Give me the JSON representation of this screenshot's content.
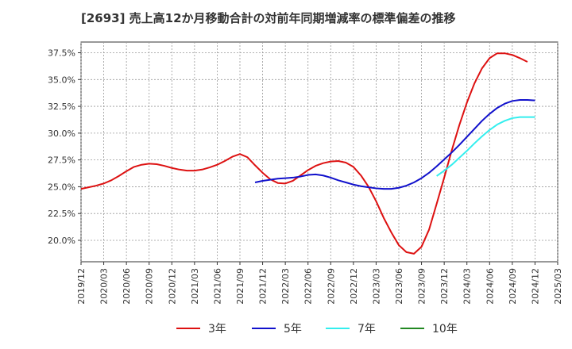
{
  "chart_data": {
    "type": "line",
    "title": "[2693]  売上高12か月移動合計の対前年同期増減率の標準偏差の推移",
    "xlabel": "",
    "ylabel": "",
    "x_ticks": [
      "2019/12",
      "2020/03",
      "2020/06",
      "2020/09",
      "2020/12",
      "2021/03",
      "2021/06",
      "2021/09",
      "2021/12",
      "2022/03",
      "2022/06",
      "2022/09",
      "2022/12",
      "2023/03",
      "2023/06",
      "2023/09",
      "2023/12",
      "2024/03",
      "2024/06",
      "2024/09",
      "2024/12",
      "2025/03"
    ],
    "y_ticks": [
      "20.0%",
      "22.5%",
      "25.0%",
      "27.5%",
      "30.0%",
      "32.5%",
      "35.0%",
      "37.5%"
    ],
    "ylim": [
      18.0,
      38.5
    ],
    "grid": true,
    "legend_position": "bottom",
    "series": [
      {
        "name": "3年",
        "color": "#dd1111",
        "data": [
          [
            "2019/12",
            24.8
          ],
          [
            "2020/01",
            24.95
          ],
          [
            "2020/02",
            25.1
          ],
          [
            "2020/03",
            25.3
          ],
          [
            "2020/04",
            25.6
          ],
          [
            "2020/05",
            26.0
          ],
          [
            "2020/06",
            26.45
          ],
          [
            "2020/07",
            26.85
          ],
          [
            "2020/08",
            27.05
          ],
          [
            "2020/09",
            27.15
          ],
          [
            "2020/10",
            27.1
          ],
          [
            "2020/11",
            26.95
          ],
          [
            "2020/12",
            26.75
          ],
          [
            "2021/01",
            26.6
          ],
          [
            "2021/02",
            26.5
          ],
          [
            "2021/03",
            26.5
          ],
          [
            "2021/04",
            26.6
          ],
          [
            "2021/05",
            26.8
          ],
          [
            "2021/06",
            27.05
          ],
          [
            "2021/07",
            27.4
          ],
          [
            "2021/08",
            27.8
          ],
          [
            "2021/09",
            28.05
          ],
          [
            "2021/10",
            27.75
          ],
          [
            "2021/11",
            27.0
          ],
          [
            "2021/12",
            26.3
          ],
          [
            "2022/01",
            25.7
          ],
          [
            "2022/02",
            25.35
          ],
          [
            "2022/03",
            25.3
          ],
          [
            "2022/04",
            25.55
          ],
          [
            "2022/05",
            26.05
          ],
          [
            "2022/06",
            26.55
          ],
          [
            "2022/07",
            26.95
          ],
          [
            "2022/08",
            27.2
          ],
          [
            "2022/09",
            27.35
          ],
          [
            "2022/10",
            27.4
          ],
          [
            "2022/11",
            27.25
          ],
          [
            "2022/12",
            26.85
          ],
          [
            "2023/01",
            26.05
          ],
          [
            "2023/02",
            25.0
          ],
          [
            "2023/03",
            23.65
          ],
          [
            "2023/04",
            22.1
          ],
          [
            "2023/05",
            20.75
          ],
          [
            "2023/06",
            19.55
          ],
          [
            "2023/07",
            18.9
          ],
          [
            "2023/08",
            18.75
          ],
          [
            "2023/09",
            19.4
          ],
          [
            "2023/10",
            21.0
          ],
          [
            "2023/11",
            23.4
          ],
          [
            "2023/12",
            25.85
          ],
          [
            "2024/01",
            28.4
          ],
          [
            "2024/02",
            30.75
          ],
          [
            "2024/03",
            32.85
          ],
          [
            "2024/04",
            34.65
          ],
          [
            "2024/05",
            36.05
          ],
          [
            "2024/06",
            37.0
          ],
          [
            "2024/07",
            37.45
          ],
          [
            "2024/08",
            37.45
          ],
          [
            "2024/09",
            37.3
          ],
          [
            "2024/10",
            37.0
          ],
          [
            "2024/11",
            36.65
          ]
        ]
      },
      {
        "name": "5年",
        "color": "#1111cc",
        "data": [
          [
            "2021/11",
            25.4
          ],
          [
            "2021/12",
            25.55
          ],
          [
            "2022/01",
            25.65
          ],
          [
            "2022/02",
            25.75
          ],
          [
            "2022/03",
            25.8
          ],
          [
            "2022/04",
            25.85
          ],
          [
            "2022/05",
            25.95
          ],
          [
            "2022/06",
            26.1
          ],
          [
            "2022/07",
            26.15
          ],
          [
            "2022/08",
            26.05
          ],
          [
            "2022/09",
            25.85
          ],
          [
            "2022/10",
            25.6
          ],
          [
            "2022/11",
            25.4
          ],
          [
            "2022/12",
            25.2
          ],
          [
            "2023/01",
            25.05
          ],
          [
            "2023/02",
            24.95
          ],
          [
            "2023/03",
            24.85
          ],
          [
            "2023/04",
            24.8
          ],
          [
            "2023/05",
            24.8
          ],
          [
            "2023/06",
            24.9
          ],
          [
            "2023/07",
            25.1
          ],
          [
            "2023/08",
            25.4
          ],
          [
            "2023/09",
            25.8
          ],
          [
            "2023/10",
            26.3
          ],
          [
            "2023/11",
            26.9
          ],
          [
            "2023/12",
            27.55
          ],
          [
            "2024/01",
            28.2
          ],
          [
            "2024/02",
            28.9
          ],
          [
            "2024/03",
            29.65
          ],
          [
            "2024/04",
            30.4
          ],
          [
            "2024/05",
            31.15
          ],
          [
            "2024/06",
            31.8
          ],
          [
            "2024/07",
            32.35
          ],
          [
            "2024/08",
            32.75
          ],
          [
            "2024/09",
            33.0
          ],
          [
            "2024/10",
            33.1
          ],
          [
            "2024/11",
            33.1
          ],
          [
            "2024/12",
            33.05
          ]
        ]
      },
      {
        "name": "7年",
        "color": "#33eeee",
        "data": [
          [
            "2023/11",
            26.0
          ],
          [
            "2023/12",
            26.5
          ],
          [
            "2024/01",
            27.05
          ],
          [
            "2024/02",
            27.7
          ],
          [
            "2024/03",
            28.35
          ],
          [
            "2024/04",
            29.05
          ],
          [
            "2024/05",
            29.7
          ],
          [
            "2024/06",
            30.3
          ],
          [
            "2024/07",
            30.8
          ],
          [
            "2024/08",
            31.15
          ],
          [
            "2024/09",
            31.4
          ],
          [
            "2024/10",
            31.5
          ],
          [
            "2024/11",
            31.5
          ],
          [
            "2024/12",
            31.5
          ]
        ]
      },
      {
        "name": "10年",
        "color": "#228822",
        "data": []
      }
    ]
  }
}
